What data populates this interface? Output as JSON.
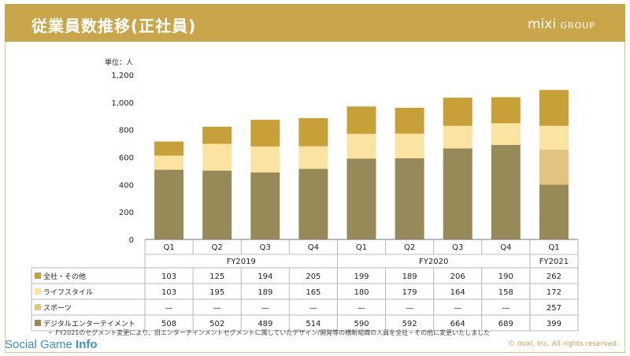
{
  "header": {
    "title": "従業員数推移(正社員)",
    "logo_main": "mixi",
    "logo_sub": "GROUP"
  },
  "unit_label": "単位：人",
  "footnote": "・ FY2021のセグメント変更により、旧エンターテインメントセグメントに属していたデザイン/開発等の横断組織の人員を全社・その他に変更いたしました",
  "copyright": "© mixi, Inc. All rights reserved.",
  "watermark": {
    "a": "Social Game ",
    "b": "Info"
  },
  "chart_data": {
    "type": "bar",
    "stacked": true,
    "categories": [
      "Q1",
      "Q2",
      "Q3",
      "Q4",
      "Q1",
      "Q2",
      "Q3",
      "Q4",
      "Q1"
    ],
    "fiscal_years": [
      {
        "label": "FY2019",
        "span": 4
      },
      {
        "label": "FY2020",
        "span": 4
      },
      {
        "label": "FY2021",
        "span": 1
      }
    ],
    "ylim": [
      0,
      1200
    ],
    "yticks": [
      "0",
      "200",
      "400",
      "600",
      "800",
      "1,000",
      "1,200"
    ],
    "series": [
      {
        "name": "デジタルエンターテイメント",
        "color": "#958a58",
        "values": [
          508,
          502,
          489,
          514,
          590,
          592,
          664,
          689,
          399
        ]
      },
      {
        "name": "スポーツ",
        "color": "#e2c380",
        "values": [
          null,
          null,
          null,
          null,
          null,
          null,
          null,
          null,
          257
        ]
      },
      {
        "name": "ライフスタイル",
        "color": "#fbe4a2",
        "values": [
          103,
          195,
          189,
          165,
          180,
          179,
          164,
          158,
          172
        ]
      },
      {
        "name": "全社・その他",
        "color": "#c8a038",
        "values": [
          103,
          125,
          194,
          205,
          199,
          189,
          206,
          190,
          262
        ]
      }
    ],
    "table_rows": [
      {
        "label": "全社・その他",
        "color": "#c8a038",
        "cells": [
          "103",
          "125",
          "194",
          "205",
          "199",
          "189",
          "206",
          "190",
          "262"
        ]
      },
      {
        "label": "ライフスタイル",
        "color": "#fbe4a2",
        "cells": [
          "103",
          "195",
          "189",
          "165",
          "180",
          "179",
          "164",
          "158",
          "172"
        ]
      },
      {
        "label": "スポーツ",
        "color": "#e2c380",
        "cells": [
          "—",
          "—",
          "—",
          "—",
          "—",
          "—",
          "—",
          "—",
          "257"
        ]
      },
      {
        "label": "デジタルエンターテイメント",
        "color": "#958a58",
        "cells": [
          "508",
          "502",
          "489",
          "514",
          "590",
          "592",
          "664",
          "689",
          "399"
        ]
      }
    ]
  }
}
